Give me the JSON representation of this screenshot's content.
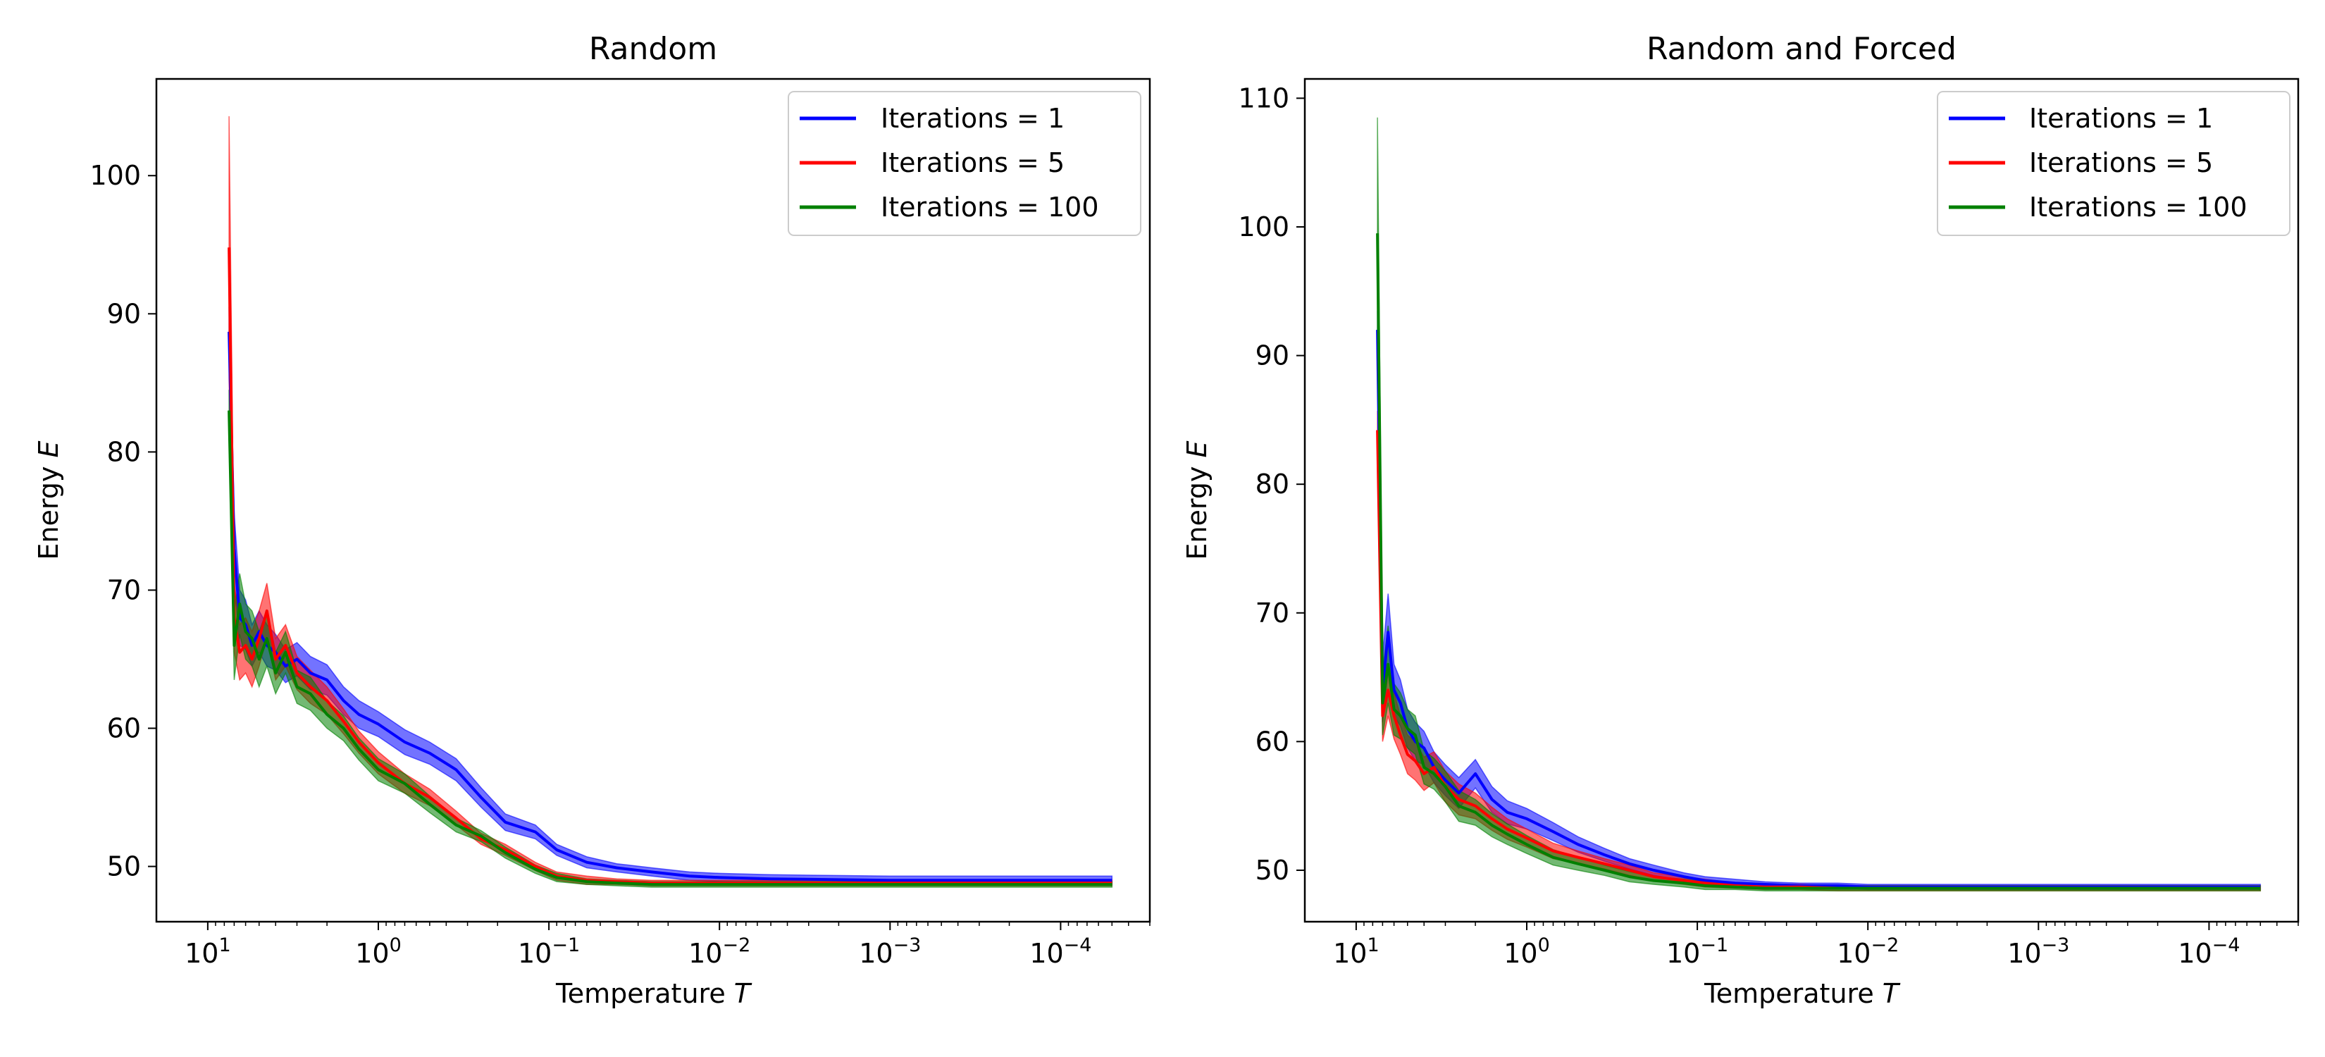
{
  "chart_data": [
    {
      "type": "line",
      "title": "Random",
      "xlabel": "Temperature",
      "xlabel_var": "T",
      "ylabel": "Energy",
      "ylabel_var": "E",
      "xscale": "log",
      "xaxis_direction": "decreasing",
      "xlim": [
        20,
        3e-05
      ],
      "ylim": [
        46,
        107
      ],
      "xticks": [
        {
          "value": 10,
          "base": "10",
          "exp": "1"
        },
        {
          "value": 1,
          "base": "10",
          "exp": "0"
        },
        {
          "value": 0.1,
          "base": "10",
          "exp": "−1"
        },
        {
          "value": 0.01,
          "base": "10",
          "exp": "−2"
        },
        {
          "value": 0.001,
          "base": "10",
          "exp": "−3"
        },
        {
          "value": 0.0001,
          "base": "10",
          "exp": "−4"
        }
      ],
      "yticks": [
        50,
        60,
        70,
        80,
        90,
        100
      ],
      "legend": "top-right",
      "grid": false,
      "series": [
        {
          "name": "Iterations = 1",
          "color": "#0000ff",
          "x": [
            7.5,
            7.0,
            6.5,
            6.0,
            5.5,
            5.0,
            4.5,
            4.0,
            3.5,
            3.0,
            2.5,
            2.0,
            1.6,
            1.3,
            1.0,
            0.7,
            0.5,
            0.35,
            0.25,
            0.18,
            0.12,
            0.09,
            0.06,
            0.04,
            0.025,
            0.015,
            0.01,
            0.005,
            0.001,
            0.0001,
            5e-05
          ],
          "y": [
            88.7,
            73.0,
            68.0,
            67.5,
            66.0,
            67.0,
            66.0,
            65.5,
            64.5,
            65.0,
            64.0,
            63.5,
            62.0,
            61.0,
            60.3,
            59.0,
            58.2,
            57.0,
            55.0,
            53.2,
            52.5,
            51.2,
            50.3,
            49.9,
            49.6,
            49.3,
            49.2,
            49.1,
            49.0,
            49.0,
            49.0
          ],
          "band": [
            1.8,
            2.5,
            2.0,
            1.8,
            1.5,
            1.5,
            1.5,
            1.3,
            1.2,
            1.2,
            1.2,
            1.1,
            1.0,
            1.0,
            0.9,
            0.9,
            0.8,
            0.8,
            0.7,
            0.6,
            0.5,
            0.4,
            0.4,
            0.3,
            0.3,
            0.3,
            0.3,
            0.3,
            0.3,
            0.3,
            0.3
          ]
        },
        {
          "name": "Iterations = 5",
          "color": "#ff0000",
          "x": [
            7.5,
            7.0,
            6.5,
            6.0,
            5.5,
            5.0,
            4.5,
            4.0,
            3.5,
            3.0,
            2.5,
            2.0,
            1.6,
            1.3,
            1.0,
            0.7,
            0.5,
            0.35,
            0.25,
            0.18,
            0.12,
            0.09,
            0.06,
            0.04,
            0.025,
            0.015,
            0.01,
            0.005,
            0.001,
            0.0001,
            5e-05
          ],
          "y": [
            94.8,
            68.0,
            65.5,
            66.0,
            65.0,
            66.5,
            68.5,
            65.0,
            66.0,
            64.0,
            63.0,
            62.0,
            60.5,
            59.0,
            57.5,
            56.0,
            55.0,
            53.5,
            52.0,
            51.2,
            50.0,
            49.3,
            49.0,
            48.9,
            48.8,
            48.8,
            48.8,
            48.8,
            48.8,
            48.8,
            48.8
          ],
          "band": [
            9.5,
            2.5,
            2.0,
            2.0,
            2.0,
            2.0,
            2.0,
            1.5,
            1.5,
            1.2,
            1.2,
            1.0,
            0.9,
            0.8,
            0.8,
            0.7,
            0.6,
            0.5,
            0.4,
            0.4,
            0.3,
            0.3,
            0.3,
            0.2,
            0.2,
            0.2,
            0.2,
            0.2,
            0.2,
            0.2,
            0.2
          ]
        },
        {
          "name": "Iterations = 100",
          "color": "#008000",
          "x": [
            7.5,
            7.0,
            6.5,
            6.0,
            5.5,
            5.0,
            4.5,
            4.0,
            3.5,
            3.0,
            2.5,
            2.0,
            1.6,
            1.3,
            1.0,
            0.7,
            0.5,
            0.35,
            0.25,
            0.18,
            0.12,
            0.09,
            0.06,
            0.04,
            0.025,
            0.015,
            0.01,
            0.005,
            0.001,
            0.0001,
            5e-05
          ],
          "y": [
            83.0,
            66.0,
            69.0,
            67.0,
            66.5,
            65.0,
            66.5,
            64.0,
            65.5,
            63.0,
            62.5,
            61.0,
            60.0,
            58.5,
            57.0,
            56.0,
            54.5,
            53.0,
            52.2,
            51.0,
            49.8,
            49.2,
            48.9,
            48.8,
            48.7,
            48.7,
            48.7,
            48.7,
            48.7,
            48.7,
            48.7
          ],
          "band": [
            1.5,
            2.5,
            2.2,
            2.0,
            2.0,
            2.0,
            2.0,
            1.5,
            1.5,
            1.2,
            1.2,
            1.0,
            0.9,
            0.8,
            0.8,
            0.7,
            0.6,
            0.5,
            0.4,
            0.4,
            0.3,
            0.3,
            0.2,
            0.2,
            0.2,
            0.2,
            0.2,
            0.2,
            0.2,
            0.2,
            0.2
          ]
        }
      ]
    },
    {
      "type": "line",
      "title": "Random and Forced",
      "xlabel": "Temperature",
      "xlabel_var": "T",
      "ylabel": "Energy",
      "ylabel_var": "E",
      "xscale": "log",
      "xaxis_direction": "decreasing",
      "xlim": [
        20,
        3e-05
      ],
      "ylim": [
        46,
        111.5
      ],
      "xticks": [
        {
          "value": 10,
          "base": "10",
          "exp": "1"
        },
        {
          "value": 1,
          "base": "10",
          "exp": "0"
        },
        {
          "value": 0.1,
          "base": "10",
          "exp": "−1"
        },
        {
          "value": 0.01,
          "base": "10",
          "exp": "−2"
        },
        {
          "value": 0.001,
          "base": "10",
          "exp": "−3"
        },
        {
          "value": 0.0001,
          "base": "10",
          "exp": "−4"
        }
      ],
      "yticks": [
        50,
        60,
        70,
        80,
        90,
        100,
        110
      ],
      "legend": "top-right",
      "grid": false,
      "series": [
        {
          "name": "Iterations = 1",
          "color": "#0000ff",
          "x": [
            7.5,
            7.0,
            6.5,
            6.0,
            5.5,
            5.0,
            4.5,
            4.0,
            3.5,
            3.0,
            2.5,
            2.0,
            1.6,
            1.3,
            1.0,
            0.7,
            0.5,
            0.35,
            0.25,
            0.18,
            0.12,
            0.09,
            0.06,
            0.04,
            0.025,
            0.015,
            0.01,
            0.005,
            0.001,
            0.0001,
            5e-05
          ],
          "y": [
            92.0,
            64.0,
            68.5,
            64.0,
            63.0,
            61.0,
            60.0,
            59.5,
            58.0,
            57.0,
            56.0,
            57.5,
            55.5,
            54.5,
            54.0,
            53.0,
            52.0,
            51.2,
            50.5,
            50.0,
            49.5,
            49.2,
            49.0,
            48.9,
            48.8,
            48.8,
            48.7,
            48.7,
            48.7,
            48.7,
            48.7
          ],
          "band": [
            1.5,
            2.5,
            3.0,
            2.0,
            1.8,
            1.5,
            1.5,
            1.3,
            1.2,
            1.2,
            1.2,
            1.1,
            1.0,
            0.9,
            0.8,
            0.7,
            0.6,
            0.5,
            0.4,
            0.4,
            0.3,
            0.3,
            0.3,
            0.2,
            0.2,
            0.2,
            0.2,
            0.2,
            0.2,
            0.2,
            0.2
          ]
        },
        {
          "name": "Iterations = 5",
          "color": "#ff0000",
          "x": [
            7.5,
            7.0,
            6.5,
            6.0,
            5.5,
            5.0,
            4.5,
            4.0,
            3.5,
            3.0,
            2.5,
            2.0,
            1.6,
            1.3,
            1.0,
            0.7,
            0.5,
            0.35,
            0.25,
            0.18,
            0.12,
            0.09,
            0.06,
            0.04,
            0.025,
            0.015,
            0.01,
            0.005,
            0.001,
            0.0001,
            5e-05
          ],
          "y": [
            84.2,
            62.0,
            64.0,
            62.0,
            60.5,
            59.0,
            58.5,
            57.5,
            58.0,
            56.5,
            55.5,
            55.0,
            54.0,
            53.2,
            52.5,
            51.5,
            51.0,
            50.5,
            50.0,
            49.5,
            49.2,
            49.0,
            48.8,
            48.7,
            48.7,
            48.6,
            48.6,
            48.6,
            48.6,
            48.6,
            48.6
          ],
          "band": [
            1.5,
            2.0,
            2.0,
            1.8,
            1.5,
            1.5,
            1.5,
            1.3,
            1.2,
            1.2,
            1.2,
            1.0,
            0.9,
            0.8,
            0.7,
            0.6,
            0.5,
            0.4,
            0.4,
            0.3,
            0.3,
            0.3,
            0.2,
            0.2,
            0.2,
            0.2,
            0.2,
            0.2,
            0.2,
            0.2,
            0.2
          ]
        },
        {
          "name": "Iterations = 100",
          "color": "#008000",
          "x": [
            7.5,
            7.0,
            6.5,
            6.0,
            5.5,
            5.0,
            4.5,
            4.0,
            3.5,
            3.0,
            2.5,
            2.0,
            1.6,
            1.3,
            1.0,
            0.7,
            0.5,
            0.35,
            0.25,
            0.18,
            0.12,
            0.09,
            0.06,
            0.04,
            0.025,
            0.015,
            0.01,
            0.005,
            0.001,
            0.0001,
            5e-05
          ],
          "y": [
            99.5,
            63.0,
            66.0,
            62.5,
            62.0,
            61.0,
            60.5,
            58.0,
            57.5,
            56.5,
            55.0,
            54.5,
            53.5,
            52.8,
            52.0,
            51.0,
            50.5,
            50.0,
            49.5,
            49.2,
            49.0,
            48.8,
            48.7,
            48.6,
            48.6,
            48.6,
            48.6,
            48.6,
            48.6,
            48.6,
            48.6
          ],
          "band": [
            9.0,
            2.5,
            3.0,
            2.0,
            1.8,
            1.5,
            1.5,
            1.3,
            1.2,
            1.2,
            1.2,
            1.0,
            0.9,
            0.8,
            0.7,
            0.6,
            0.5,
            0.4,
            0.4,
            0.3,
            0.3,
            0.3,
            0.2,
            0.2,
            0.2,
            0.2,
            0.2,
            0.2,
            0.2,
            0.2,
            0.2
          ]
        }
      ]
    }
  ]
}
